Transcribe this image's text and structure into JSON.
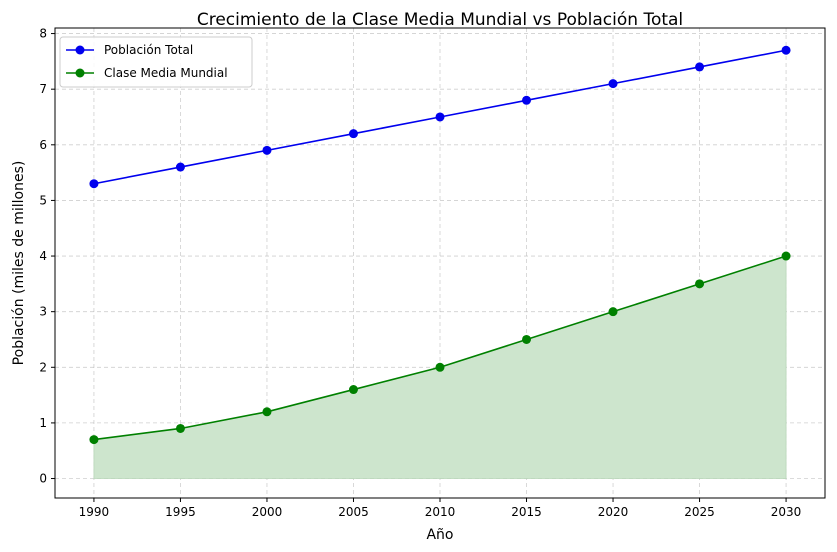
{
  "chart_data": {
    "type": "line",
    "title": "Crecimiento de la Clase Media Mundial vs Población Total",
    "xlabel": "Año",
    "ylabel": "Población (miles de millones)",
    "x": [
      1990,
      1995,
      2000,
      2005,
      2010,
      2015,
      2020,
      2025,
      2030
    ],
    "xlim": [
      1987.75,
      2032.25
    ],
    "ylim": [
      -0.35,
      8.1
    ],
    "xticks": [
      1990,
      1995,
      2000,
      2005,
      2010,
      2015,
      2020,
      2025,
      2030
    ],
    "yticks": [
      0,
      1,
      2,
      3,
      4,
      5,
      6,
      7,
      8
    ],
    "grid": true,
    "legend_position": "top-left",
    "series": [
      {
        "name": "Población Total",
        "color": "#0000ee",
        "marker": "circle",
        "values": [
          5.3,
          5.6,
          5.9,
          6.2,
          6.5,
          6.8,
          7.1,
          7.4,
          7.7
        ],
        "fill": false
      },
      {
        "name": "Clase Media Mundial",
        "color": "#008000",
        "marker": "circle",
        "values": [
          0.7,
          0.9,
          1.2,
          1.6,
          2.0,
          2.5,
          3.0,
          3.5,
          4.0
        ],
        "fill": true,
        "fill_color": "#cde5cd"
      }
    ]
  }
}
